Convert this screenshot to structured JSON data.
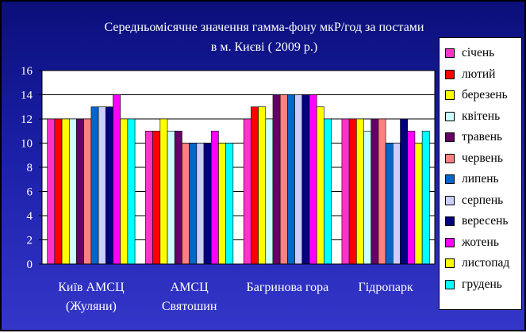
{
  "chart_data": {
    "type": "bar",
    "title": [
      "Середньомісячне значення гамма-фону мкР/год за постами",
      "в м. Києві ( 2009 р.)"
    ],
    "categories": [
      [
        "Київ АМСЦ",
        "(Жуляни)"
      ],
      [
        "АМСЦ",
        "Святошин"
      ],
      [
        "Багринова гора"
      ],
      [
        "Гідропарк"
      ]
    ],
    "ylim": [
      0,
      16
    ],
    "yticks": [
      "0",
      "2",
      "4",
      "6",
      "8",
      "10",
      "12",
      "14",
      "16"
    ],
    "grid": true,
    "legend_position": "right",
    "series": [
      {
        "name": "січень",
        "color": "#ff33cc",
        "values": [
          12,
          11,
          12,
          12
        ]
      },
      {
        "name": "лютий",
        "color": "#ff0000",
        "values": [
          12,
          11,
          13,
          12
        ]
      },
      {
        "name": "березень",
        "color": "#ffff00",
        "values": [
          12,
          12,
          13,
          12
        ]
      },
      {
        "name": "квітень",
        "color": "#ccffff",
        "values": [
          12,
          11,
          12,
          11
        ]
      },
      {
        "name": "травень",
        "color": "#660066",
        "values": [
          12,
          11,
          14,
          12
        ]
      },
      {
        "name": "червень",
        "color": "#ff8080",
        "values": [
          12,
          10,
          14,
          12
        ]
      },
      {
        "name": "липень",
        "color": "#0066cc",
        "values": [
          13,
          10,
          14,
          10
        ]
      },
      {
        "name": "серпень",
        "color": "#ccccff",
        "values": [
          13,
          10,
          14,
          10
        ]
      },
      {
        "name": "вересень",
        "color": "#000080",
        "values": [
          13,
          10,
          14,
          12
        ]
      },
      {
        "name": "жотень",
        "color": "#ff00ff",
        "values": [
          14,
          11,
          14,
          11
        ]
      },
      {
        "name": "листопад",
        "color": "#ffff00",
        "values": [
          12,
          10,
          13,
          10
        ]
      },
      {
        "name": "грудень",
        "color": "#00ffff",
        "values": [
          12,
          10,
          12,
          11
        ]
      }
    ]
  }
}
